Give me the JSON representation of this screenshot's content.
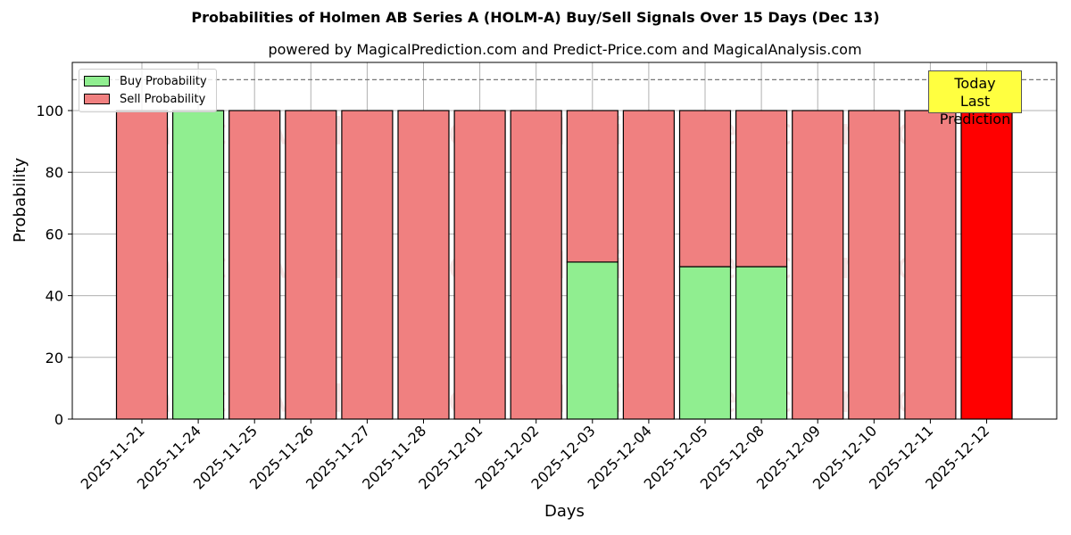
{
  "title": "Probabilities of Holmen AB Series A (HOLM-A) Buy/Sell Signals Over 15 Days (Dec 13)",
  "subtitle": "powered by MagicalPrediction.com and Predict-Price.com and MagicalAnalysis.com",
  "legend": {
    "buy_label": "Buy Probability",
    "sell_label": "Sell Probability"
  },
  "annotation": {
    "line1": "Today",
    "line2": "Last Prediction"
  },
  "watermarks": [
    "MagicalAnalysis.com",
    "MagicalPrediction.com"
  ],
  "colors": {
    "buy": "#90ee90",
    "sell": "#f08080",
    "today": "#ff0000",
    "annotation_bg": "#ffff40"
  },
  "chart_data": {
    "type": "bar",
    "stacked": true,
    "title": "Probabilities of Holmen AB Series A (HOLM-A) Buy/Sell Signals Over 15 Days (Dec 13)",
    "subtitle": "powered by MagicalPrediction.com and Predict-Price.com and MagicalAnalysis.com",
    "xlabel": "Days",
    "ylabel": "Probability",
    "ylim": [
      0,
      115
    ],
    "yticks": [
      0,
      20,
      40,
      60,
      80,
      100
    ],
    "grid": true,
    "legend_position": "upper left",
    "reference_line": {
      "y": 110,
      "style": "dashed"
    },
    "categories": [
      "2025-11-21",
      "2025-11-24",
      "2025-11-25",
      "2025-11-26",
      "2025-11-27",
      "2025-11-28",
      "2025-12-01",
      "2025-12-02",
      "2025-12-03",
      "2025-12-04",
      "2025-12-05",
      "2025-12-08",
      "2025-12-09",
      "2025-12-10",
      "2025-12-11",
      "2025-12-12"
    ],
    "series": [
      {
        "name": "Buy Probability",
        "values": [
          0,
          100,
          0,
          0,
          0,
          0,
          0,
          0,
          50.9,
          0,
          49.4,
          49.4,
          0,
          0,
          0,
          0
        ]
      },
      {
        "name": "Sell Probability",
        "values": [
          100,
          0,
          100,
          100,
          100,
          100,
          100,
          100,
          49.1,
          100,
          50.6,
          50.6,
          100,
          100,
          100,
          100
        ]
      }
    ],
    "highlight": {
      "category": "2025-12-12",
      "color": "#ff0000",
      "label": "Today Last Prediction"
    }
  }
}
